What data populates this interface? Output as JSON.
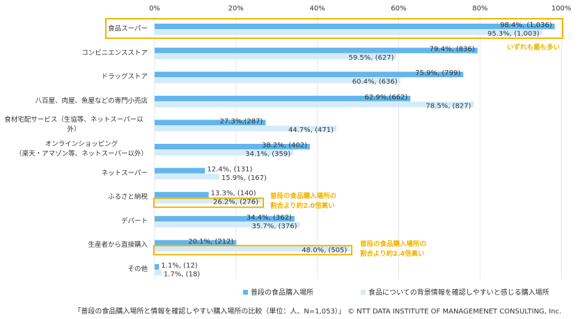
{
  "chart_data": {
    "type": "hbar",
    "categories": [
      "食品スーパー",
      "コンビニエンスストア",
      "ドラッグストア",
      "八百屋、肉屋、魚屋などの専門小売店",
      "食材宅配サービス（生協等、ネットスーパー以外）",
      "オンラインショッピング\n（楽天・アマゾン等、ネットスーパー以外）",
      "ネットスーパー",
      "ふるさと納税",
      "デパート",
      "生産者から直接購入",
      "その他"
    ],
    "series": [
      {
        "name": "普段の食品購入場所",
        "color": "#63b6ec",
        "values": [
          98.4,
          79.4,
          75.9,
          62.9,
          27.3,
          38.2,
          12.4,
          13.3,
          34.4,
          20.1,
          1.1
        ],
        "value_labels": [
          "98.4%, (1,036)",
          "79.4%, (836)",
          "75.9%, (799)",
          "62.9%,(662)",
          "27.3%,(287)",
          "38.2%, (402)",
          "12.4%, (131)",
          "13.3%, (140)",
          "34.4%, (362)",
          "20.1%, (212)",
          "1.1%, (12)"
        ]
      },
      {
        "name": "食品についての背景情報を確認しやすいと感じる購入場所",
        "color": "#d3ebfa",
        "values": [
          95.3,
          59.5,
          60.4,
          78.5,
          44.7,
          34.1,
          15.9,
          26.2,
          35.7,
          48.0,
          1.7
        ],
        "value_labels": [
          "95.3%, (1,003)",
          "59.5%, (627)",
          "60.4%, (636)",
          "78.5%, (827)",
          "44.7%, (471)",
          "34.1%, (359)",
          "15.9%, (167)",
          "26.2%, (276)",
          "35.7%, (376)",
          "48.0%, (505)",
          "1.7%, (18)"
        ]
      }
    ],
    "xlim": [
      0,
      100
    ],
    "xticks": [
      {
        "value": 0,
        "label": "0%"
      },
      {
        "value": 20,
        "label": "20%"
      },
      {
        "value": 40,
        "label": "40%"
      },
      {
        "value": 60,
        "label": "60%"
      },
      {
        "value": 80,
        "label": "80%"
      },
      {
        "value": 100,
        "label": "100%"
      }
    ],
    "grid": true,
    "legend": "bottom",
    "annotations": [
      "いずれも最も多い",
      "普段の食品購入場所の\n割合より約2.0倍高い",
      "普段の食品購入場所の\n割合より約2.4倍高い"
    ],
    "annotation_color": "#f0b400",
    "source": "「普段の食品購入場所と情報を確認しやすい購入場所の比較（単位：人、N=1,053）」 © NTT DATA INSTITUTE OF MANAGEMENET CONSULTING, Inc."
  }
}
